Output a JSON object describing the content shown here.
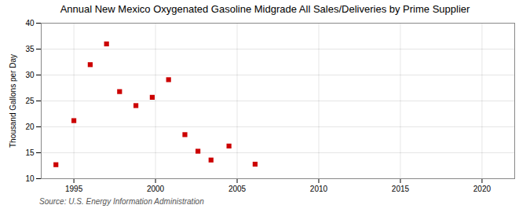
{
  "chart_data": {
    "type": "scatter",
    "title": "Annual New Mexico Oxygenated Gasoline Midgrade All Sales/Deliveries by Prime Supplier",
    "ylabel": "Thousand Gallons per Day",
    "source": "Source: U.S. Energy Information Administration",
    "x": [
      1993.9,
      1995.0,
      1996.0,
      1997.0,
      1997.8,
      1998.8,
      1999.8,
      2000.8,
      2001.8,
      2002.6,
      2003.4,
      2004.5,
      2006.1
    ],
    "values": [
      12.7,
      21.2,
      32.0,
      36.0,
      26.8,
      24.1,
      25.7,
      29.1,
      18.5,
      15.3,
      13.6,
      16.3,
      12.8
    ],
    "color": "#cc0000",
    "marker": "square",
    "xlim": [
      1993,
      2022
    ],
    "ylim": [
      10,
      40
    ],
    "xticks": [
      1995,
      2000,
      2005,
      2010,
      2015,
      2020
    ],
    "yticks": [
      10,
      15,
      20,
      25,
      30,
      35,
      40
    ],
    "grid": true
  }
}
